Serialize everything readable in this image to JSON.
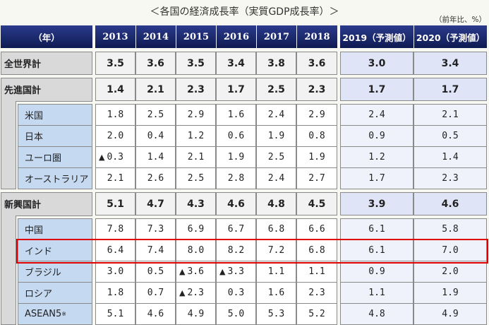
{
  "title": "＜各国の経済成長率（実質GDP成長率）＞",
  "unit": "（前年比、%）",
  "header": {
    "corner": "（年）",
    "years": [
      "2013",
      "2014",
      "2015",
      "2016",
      "2017",
      "2018"
    ],
    "forecast_years": [
      "2019（予測値）",
      "2020（予測値）"
    ]
  },
  "rows": {
    "world": {
      "label": "全世界計",
      "values": [
        "3.5",
        "3.6",
        "3.5",
        "3.4",
        "3.8",
        "3.6"
      ],
      "forecast": [
        "3.0",
        "3.4"
      ]
    },
    "advanced": {
      "label": "先進国計",
      "values": [
        "1.4",
        "2.1",
        "2.3",
        "1.7",
        "2.5",
        "2.3"
      ],
      "forecast": [
        "1.7",
        "1.7"
      ],
      "children": [
        {
          "label": "米国",
          "values": [
            "1.8",
            "2.5",
            "2.9",
            "1.6",
            "2.4",
            "2.9"
          ],
          "forecast": [
            "2.4",
            "2.1"
          ]
        },
        {
          "label": "日本",
          "values": [
            "2.0",
            "0.4",
            "1.2",
            "0.6",
            "1.9",
            "0.8"
          ],
          "forecast": [
            "0.9",
            "0.5"
          ]
        },
        {
          "label": "ユーロ圏",
          "values": [
            "▲ 0.3",
            "1.4",
            "2.1",
            "1.9",
            "2.5",
            "1.9"
          ],
          "forecast": [
            "1.2",
            "1.4"
          ]
        },
        {
          "label": "オーストラリア",
          "values": [
            "2.1",
            "2.6",
            "2.5",
            "2.8",
            "2.4",
            "2.7"
          ],
          "forecast": [
            "1.7",
            "2.3"
          ]
        }
      ]
    },
    "emerging": {
      "label": "新興国計",
      "values": [
        "5.1",
        "4.7",
        "4.3",
        "4.6",
        "4.8",
        "4.5"
      ],
      "forecast": [
        "3.9",
        "4.6"
      ],
      "children": [
        {
          "label": "中国",
          "values": [
            "7.8",
            "7.3",
            "6.9",
            "6.7",
            "6.8",
            "6.6"
          ],
          "forecast": [
            "6.1",
            "5.8"
          ]
        },
        {
          "label": "インド",
          "values": [
            "6.4",
            "7.4",
            "8.0",
            "8.2",
            "7.2",
            "6.8"
          ],
          "forecast": [
            "6.1",
            "7.0"
          ],
          "highlighted": true
        },
        {
          "label": "ブラジル",
          "values": [
            "3.0",
            "0.5",
            "▲ 3.6",
            "▲ 3.3",
            "1.1",
            "1.1"
          ],
          "forecast": [
            "0.9",
            "2.0"
          ]
        },
        {
          "label": "ロシア",
          "values": [
            "1.8",
            "0.7",
            "▲ 2.3",
            "0.3",
            "1.6",
            "2.3"
          ],
          "forecast": [
            "1.1",
            "1.9"
          ]
        },
        {
          "label": "ASEAN5",
          "label_note": "※",
          "values": [
            "5.1",
            "4.6",
            "4.9",
            "5.0",
            "5.3",
            "5.2"
          ],
          "forecast": [
            "4.8",
            "4.9"
          ]
        }
      ]
    }
  },
  "colors": {
    "header_top": "#2b3b8c",
    "header_bottom": "#0f1a52",
    "group_panel": "#d9d9d9",
    "sub_label": "#c5d9f1",
    "forecast_total": "#dfe4f7",
    "forecast_sub": "#eff1fb",
    "highlight": "#e00000"
  }
}
